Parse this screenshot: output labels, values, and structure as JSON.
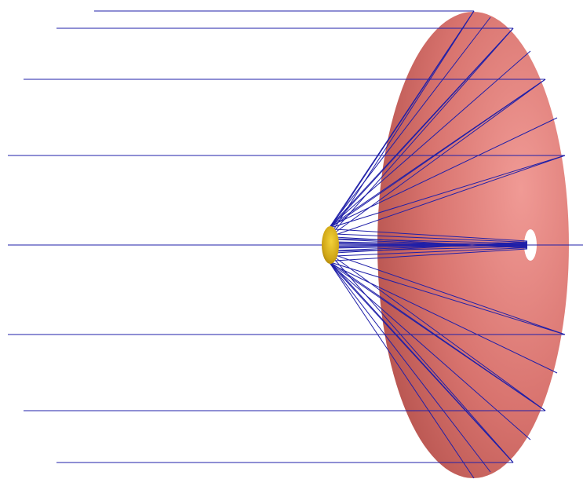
{
  "diagram": {
    "colors": {
      "background": "#ffffff",
      "ray": "#1f1fa8",
      "dish_light": "#f09a95",
      "dish_mid": "#d8736e",
      "dish_dark": "#b85550",
      "subreflector_light": "#f3d23a",
      "subreflector_dark": "#a27a08",
      "feed_hole": "#ffffff"
    }
  }
}
